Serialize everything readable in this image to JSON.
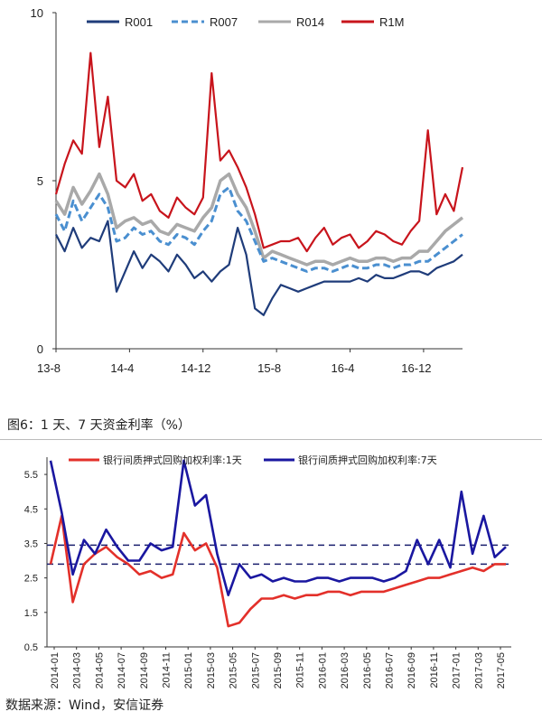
{
  "caption": "图6：1 天、7 天资金利率（%）",
  "source": "数据来源：Wind，安信证券",
  "colors": {
    "R001": "#1f3c7a",
    "R007": "#4a8fd0",
    "R014": "#a9a9a9",
    "R1M": "#c8141c",
    "d1": "#e3302a",
    "d7": "#1a17a0"
  },
  "chart_data": [
    {
      "type": "line",
      "ylim": [
        0,
        10
      ],
      "yticks": [
        "0",
        "5",
        "10"
      ],
      "xticks": [
        "13-8",
        "14-4",
        "14-12",
        "15-8",
        "16-4",
        "16-12"
      ],
      "series": [
        {
          "name": "R001",
          "x": [
            0,
            1,
            2,
            3,
            4,
            5,
            6,
            7,
            8,
            9,
            10,
            11,
            12,
            13,
            14,
            15,
            16,
            17,
            18,
            19,
            20,
            21,
            22,
            23,
            24,
            25,
            26,
            27,
            28,
            29,
            30,
            31,
            32,
            33,
            34,
            35,
            36,
            37,
            38,
            39,
            40,
            41,
            42,
            43,
            44,
            45,
            46,
            47
          ],
          "values": [
            3.4,
            2.9,
            3.6,
            3.0,
            3.3,
            3.2,
            3.8,
            1.7,
            2.3,
            2.9,
            2.4,
            2.8,
            2.6,
            2.3,
            2.8,
            2.5,
            2.1,
            2.3,
            2.0,
            2.3,
            2.5,
            3.6,
            2.8,
            1.2,
            1.0,
            1.5,
            1.9,
            1.8,
            1.7,
            1.8,
            1.9,
            2.0,
            2.0,
            2.0,
            2.0,
            2.1,
            2.0,
            2.2,
            2.1,
            2.1,
            2.2,
            2.3,
            2.3,
            2.2,
            2.4,
            2.5,
            2.6,
            2.8
          ]
        },
        {
          "name": "R007",
          "x": [
            0,
            1,
            2,
            3,
            4,
            5,
            6,
            7,
            8,
            9,
            10,
            11,
            12,
            13,
            14,
            15,
            16,
            17,
            18,
            19,
            20,
            21,
            22,
            23,
            24,
            25,
            26,
            27,
            28,
            29,
            30,
            31,
            32,
            33,
            34,
            35,
            36,
            37,
            38,
            39,
            40,
            41,
            42,
            43,
            44,
            45,
            46,
            47
          ],
          "values": [
            4.0,
            3.5,
            4.4,
            3.8,
            4.2,
            4.6,
            4.2,
            3.2,
            3.3,
            3.6,
            3.4,
            3.5,
            3.2,
            3.1,
            3.4,
            3.3,
            3.1,
            3.5,
            3.8,
            4.6,
            4.8,
            4.1,
            3.8,
            3.2,
            2.6,
            2.7,
            2.6,
            2.5,
            2.4,
            2.3,
            2.4,
            2.4,
            2.3,
            2.4,
            2.5,
            2.4,
            2.4,
            2.5,
            2.5,
            2.4,
            2.5,
            2.5,
            2.6,
            2.6,
            2.8,
            3.0,
            3.2,
            3.4
          ]
        },
        {
          "name": "R014",
          "x": [
            0,
            1,
            2,
            3,
            4,
            5,
            6,
            7,
            8,
            9,
            10,
            11,
            12,
            13,
            14,
            15,
            16,
            17,
            18,
            19,
            20,
            21,
            22,
            23,
            24,
            25,
            26,
            27,
            28,
            29,
            30,
            31,
            32,
            33,
            34,
            35,
            36,
            37,
            38,
            39,
            40,
            41,
            42,
            43,
            44,
            45,
            46,
            47
          ],
          "values": [
            4.4,
            4.0,
            4.8,
            4.3,
            4.7,
            5.2,
            4.6,
            3.6,
            3.8,
            3.9,
            3.7,
            3.8,
            3.5,
            3.4,
            3.7,
            3.6,
            3.5,
            3.9,
            4.2,
            5.0,
            5.2,
            4.6,
            4.2,
            3.5,
            2.7,
            2.9,
            2.8,
            2.7,
            2.6,
            2.5,
            2.6,
            2.6,
            2.5,
            2.6,
            2.7,
            2.6,
            2.6,
            2.7,
            2.7,
            2.6,
            2.7,
            2.7,
            2.9,
            2.9,
            3.2,
            3.5,
            3.7,
            3.9
          ]
        },
        {
          "name": "R1M",
          "x": [
            0,
            1,
            2,
            3,
            4,
            5,
            6,
            7,
            8,
            9,
            10,
            11,
            12,
            13,
            14,
            15,
            16,
            17,
            18,
            19,
            20,
            21,
            22,
            23,
            24,
            25,
            26,
            27,
            28,
            29,
            30,
            31,
            32,
            33,
            34,
            35,
            36,
            37,
            38,
            39,
            40,
            41,
            42,
            43,
            44,
            45,
            46,
            47
          ],
          "values": [
            4.6,
            5.5,
            6.2,
            5.8,
            8.8,
            6.0,
            7.5,
            5.0,
            4.8,
            5.2,
            4.4,
            4.6,
            4.1,
            3.9,
            4.5,
            4.2,
            4.0,
            4.5,
            8.2,
            5.6,
            5.9,
            5.4,
            4.8,
            4.0,
            3.0,
            3.1,
            3.2,
            3.2,
            3.3,
            2.9,
            3.3,
            3.6,
            3.1,
            3.3,
            3.4,
            3.0,
            3.2,
            3.5,
            3.4,
            3.2,
            3.1,
            3.5,
            3.8,
            6.5,
            4.0,
            4.6,
            4.1,
            5.4
          ]
        }
      ]
    },
    {
      "type": "line",
      "ylim": [
        0.5,
        6.0
      ],
      "yticks": [
        "0.5",
        "1.5",
        "2.5",
        "3.5",
        "4.5",
        "5.5"
      ],
      "xticks": [
        "2014-01",
        "2014-03",
        "2014-05",
        "2014-07",
        "2014-09",
        "2014-11",
        "2015-01",
        "2015-03",
        "2015-05",
        "2015-07",
        "2015-09",
        "2015-11",
        "2016-01",
        "2016-03",
        "2016-05",
        "2016-07",
        "2016-09",
        "2016-11",
        "2017-01",
        "2017-03",
        "2017-05"
      ],
      "hlines": [
        3.45,
        2.9
      ],
      "series": [
        {
          "name": "银行间质押式回购加权利率:1天",
          "x": [
            0,
            1,
            2,
            3,
            4,
            5,
            6,
            7,
            8,
            9,
            10,
            11,
            12,
            13,
            14,
            15,
            16,
            17,
            18,
            19,
            20,
            21,
            22,
            23,
            24,
            25,
            26,
            27,
            28,
            29,
            30,
            31,
            32,
            33,
            34,
            35,
            36,
            37,
            38,
            39,
            40,
            41
          ],
          "values": [
            2.9,
            4.3,
            1.8,
            2.9,
            3.2,
            3.4,
            3.1,
            2.9,
            2.6,
            2.7,
            2.5,
            2.6,
            3.8,
            3.3,
            3.5,
            2.8,
            1.1,
            1.2,
            1.6,
            1.9,
            1.9,
            2.0,
            1.9,
            2.0,
            2.0,
            2.1,
            2.1,
            2.0,
            2.1,
            2.1,
            2.1,
            2.2,
            2.3,
            2.4,
            2.5,
            2.5,
            2.6,
            2.7,
            2.8,
            2.7,
            2.9,
            2.9
          ]
        },
        {
          "name": "银行间质押式回购加权利率:7天",
          "x": [
            0,
            1,
            2,
            3,
            4,
            5,
            6,
            7,
            8,
            9,
            10,
            11,
            12,
            13,
            14,
            15,
            16,
            17,
            18,
            19,
            20,
            21,
            22,
            23,
            24,
            25,
            26,
            27,
            28,
            29,
            30,
            31,
            32,
            33,
            34,
            35,
            36,
            37,
            38,
            39,
            40,
            41
          ],
          "values": [
            5.9,
            4.4,
            2.6,
            3.6,
            3.2,
            3.9,
            3.4,
            3.0,
            3.0,
            3.5,
            3.3,
            3.4,
            5.9,
            4.6,
            4.9,
            3.2,
            2.0,
            2.9,
            2.5,
            2.6,
            2.4,
            2.5,
            2.4,
            2.4,
            2.5,
            2.5,
            2.4,
            2.5,
            2.5,
            2.5,
            2.4,
            2.5,
            2.7,
            3.6,
            2.9,
            3.6,
            2.8,
            5.0,
            3.2,
            4.3,
            3.1,
            3.4
          ]
        }
      ]
    }
  ]
}
